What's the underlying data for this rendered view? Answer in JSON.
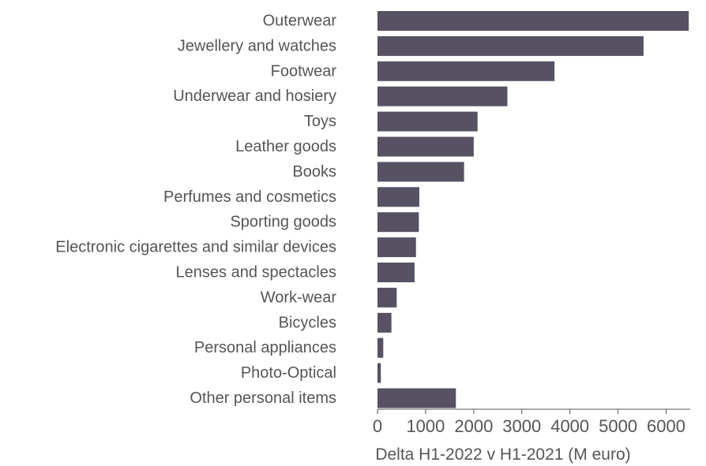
{
  "chart_data": {
    "type": "bar",
    "orientation": "horizontal",
    "title": "",
    "xlabel": "Delta H1-2022 v H1-2021 (M euro)",
    "ylabel": "",
    "xlim": [
      0,
      6500
    ],
    "xticks": [
      "0",
      "1000",
      "2000",
      "3000",
      "4000",
      "5000",
      "6000"
    ],
    "grid": false,
    "bar_color": "#575164",
    "categories": [
      "Outerwear",
      "Jewellery and watches",
      "Footwear",
      "Underwear and hosiery",
      "Toys",
      "Leather goods",
      "Books",
      "Perfumes and cosmetics",
      "Sporting goods",
      "Electronic cigarettes and similar devices",
      "Lenses and spectacles",
      "Work-wear",
      "Bicycles",
      "Personal appliances",
      "Photo-Optical",
      "Other personal items"
    ],
    "values": [
      6470,
      5530,
      3680,
      2700,
      2080,
      2000,
      1800,
      870,
      860,
      800,
      770,
      400,
      290,
      120,
      70,
      1630
    ]
  }
}
